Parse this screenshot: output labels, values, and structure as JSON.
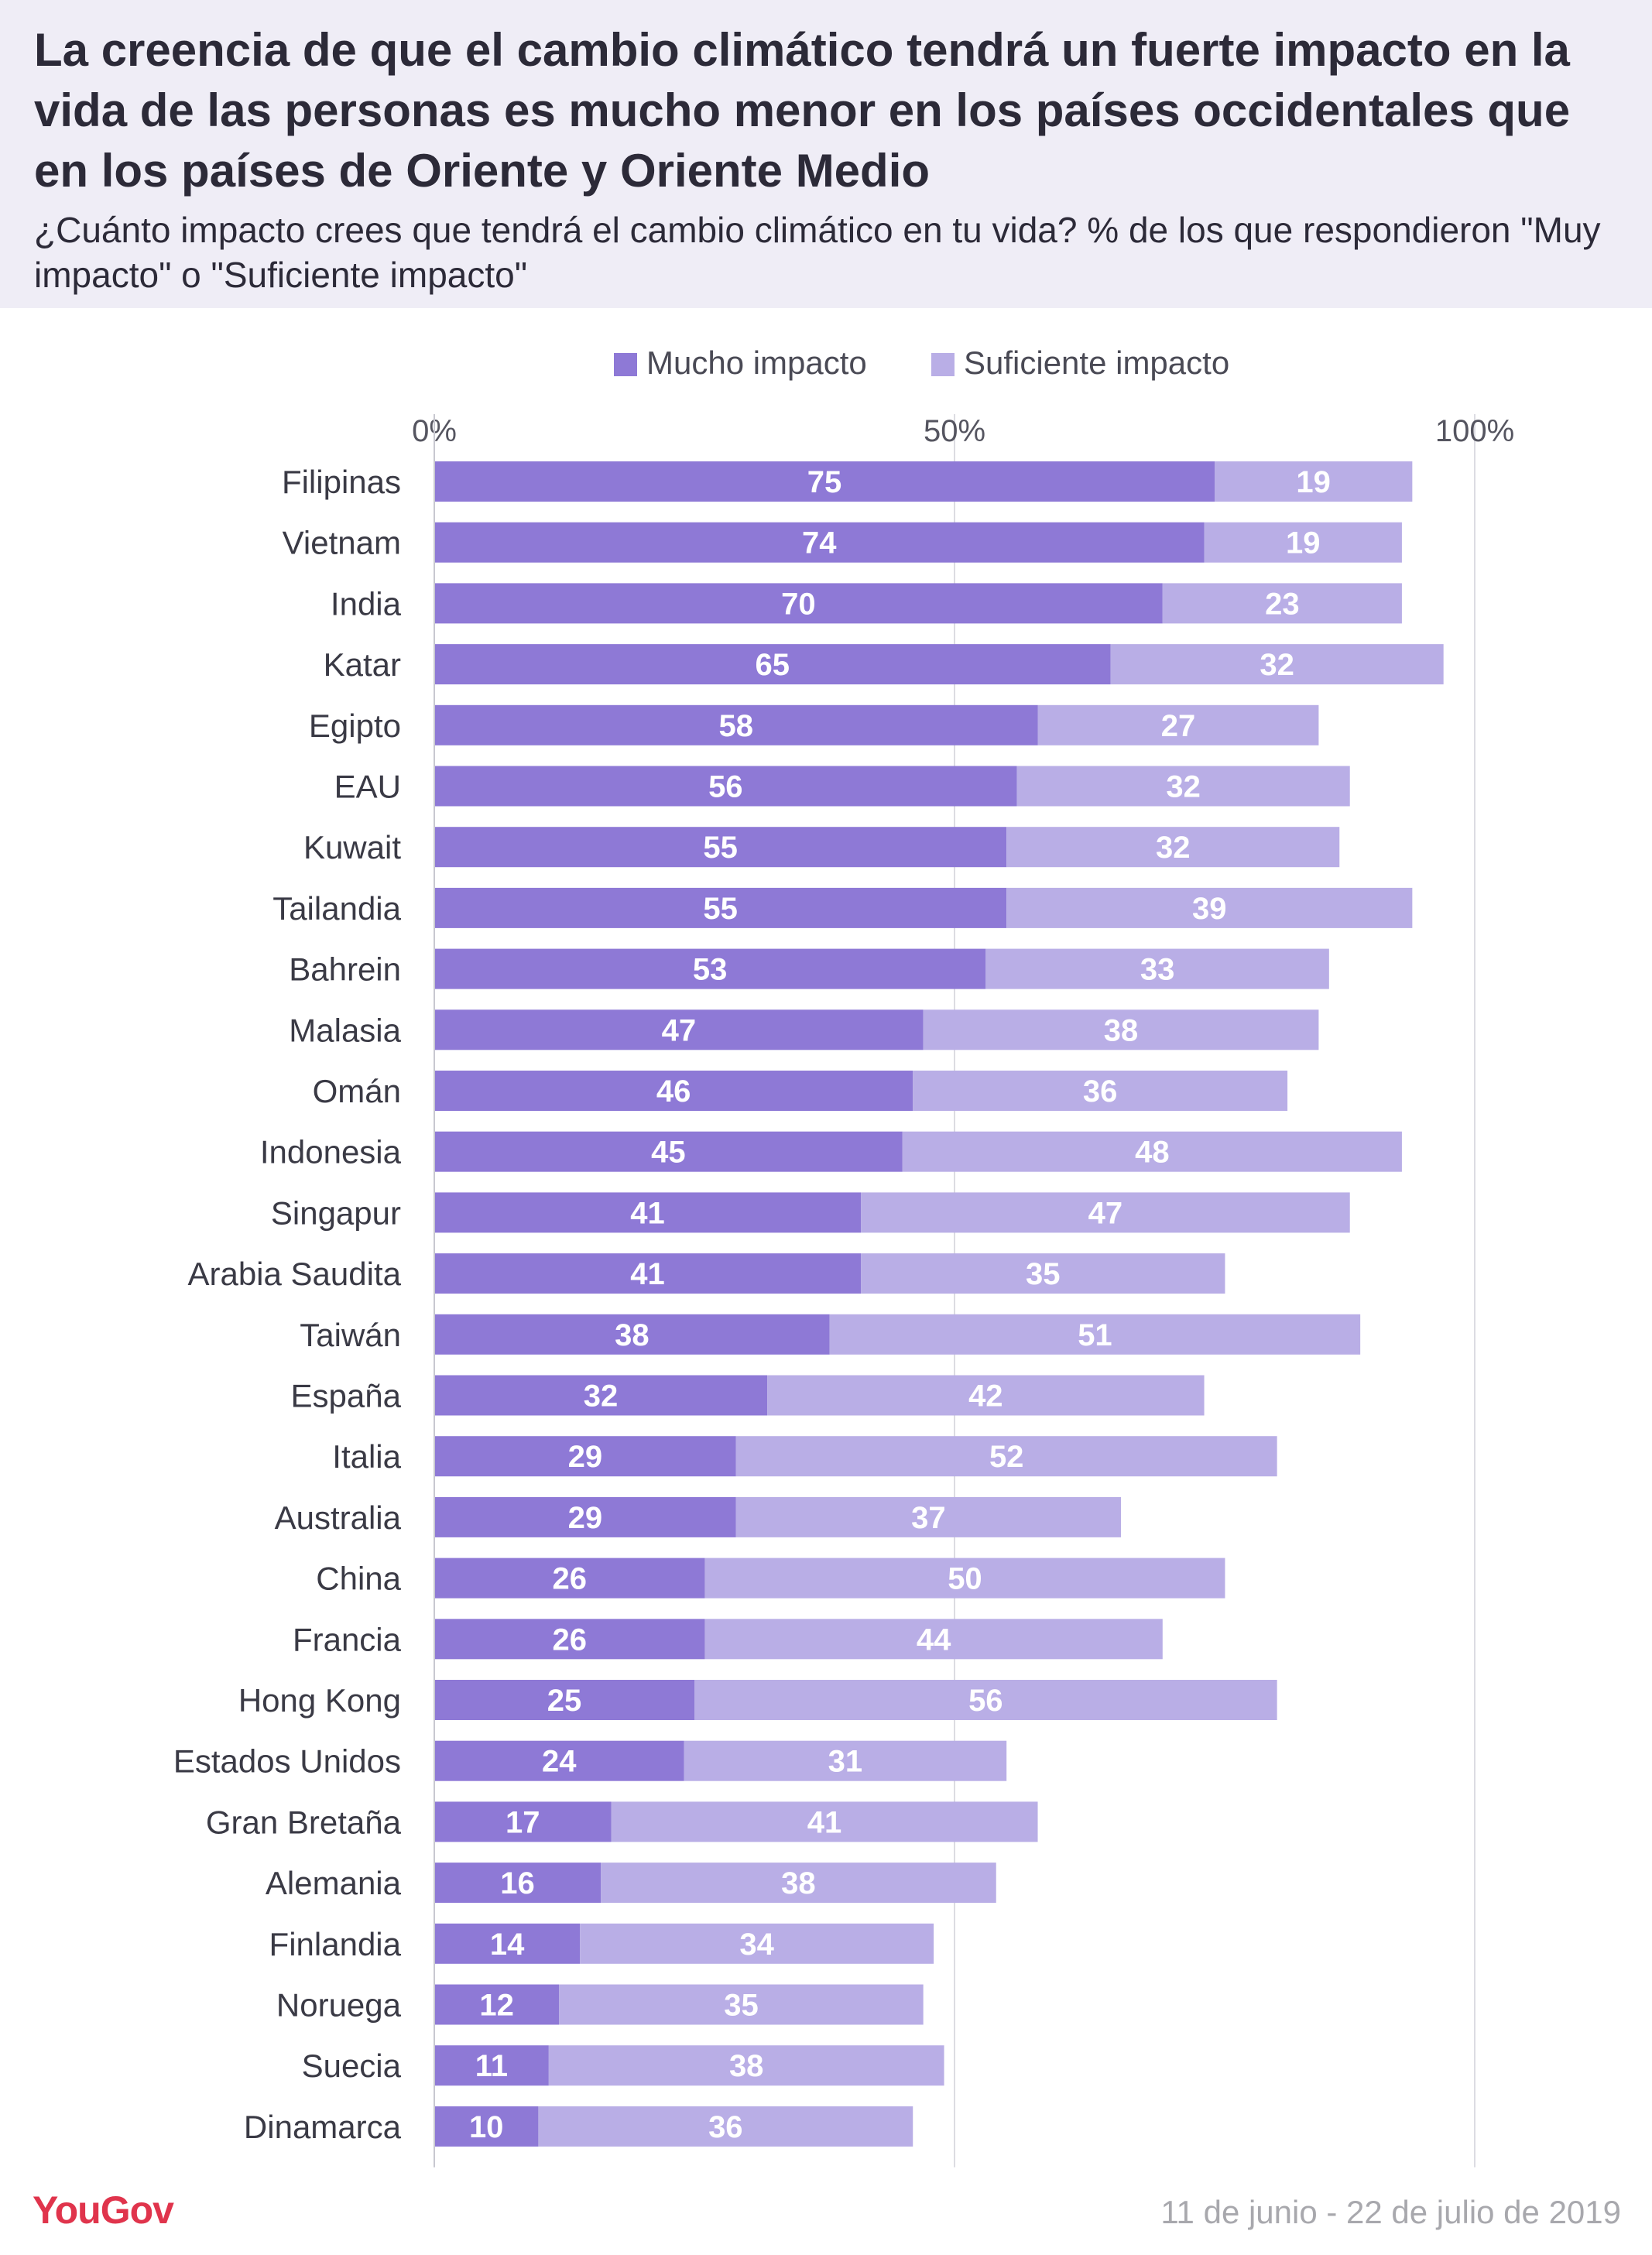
{
  "header": {
    "title": "La creencia de que el cambio climático tendrá un fuerte impacto en la vida de las personas es mucho menor en los países occidentales que en los países de Oriente y Oriente Medio",
    "subtitle": "¿Cuánto impacto crees que tendrá el cambio climático en tu vida? % de los que respondieron \"Muy impacto\" o \"Suficiente impacto\""
  },
  "footer": {
    "brand": "YouGov",
    "date_range": "11 de junio - 22 de julio de 2019"
  },
  "colors": {
    "header_bg": "#efedf6",
    "mucho": "#8e79d6",
    "suficiente": "#b9aee6",
    "text": "#2c2a38",
    "brand": "#e0344c"
  },
  "chart_data": {
    "type": "bar",
    "orientation": "horizontal",
    "stacked": true,
    "xlim": [
      0,
      100
    ],
    "x_ticks": [
      "0%",
      "50%",
      "100%"
    ],
    "legend_position": "top",
    "grid": true,
    "categories": [
      "Filipinas",
      "Vietnam",
      "India",
      "Katar",
      "Egipto",
      "EAU",
      "Kuwait",
      "Tailandia",
      "Bahrein",
      "Malasia",
      "Omán",
      "Indonesia",
      "Singapur",
      "Arabia Saudita",
      "Taiwán",
      "España",
      "Italia",
      "Australia",
      "China",
      "Francia",
      "Hong Kong",
      "Estados Unidos",
      "Gran Bretaña",
      "Alemania",
      "Finlandia",
      "Noruega",
      "Suecia",
      "Dinamarca"
    ],
    "series": [
      {
        "name": "Mucho impacto",
        "color": "#8e79d6",
        "values": [
          75,
          74,
          70,
          65,
          58,
          56,
          55,
          55,
          53,
          47,
          46,
          45,
          41,
          41,
          38,
          32,
          29,
          29,
          26,
          26,
          25,
          24,
          17,
          16,
          14,
          12,
          11,
          10
        ]
      },
      {
        "name": "Suficiente impacto",
        "color": "#b9aee6",
        "values": [
          19,
          19,
          23,
          32,
          27,
          32,
          32,
          39,
          33,
          38,
          36,
          48,
          47,
          35,
          51,
          42,
          52,
          37,
          50,
          44,
          56,
          31,
          41,
          38,
          34,
          35,
          38,
          36
        ]
      }
    ]
  }
}
